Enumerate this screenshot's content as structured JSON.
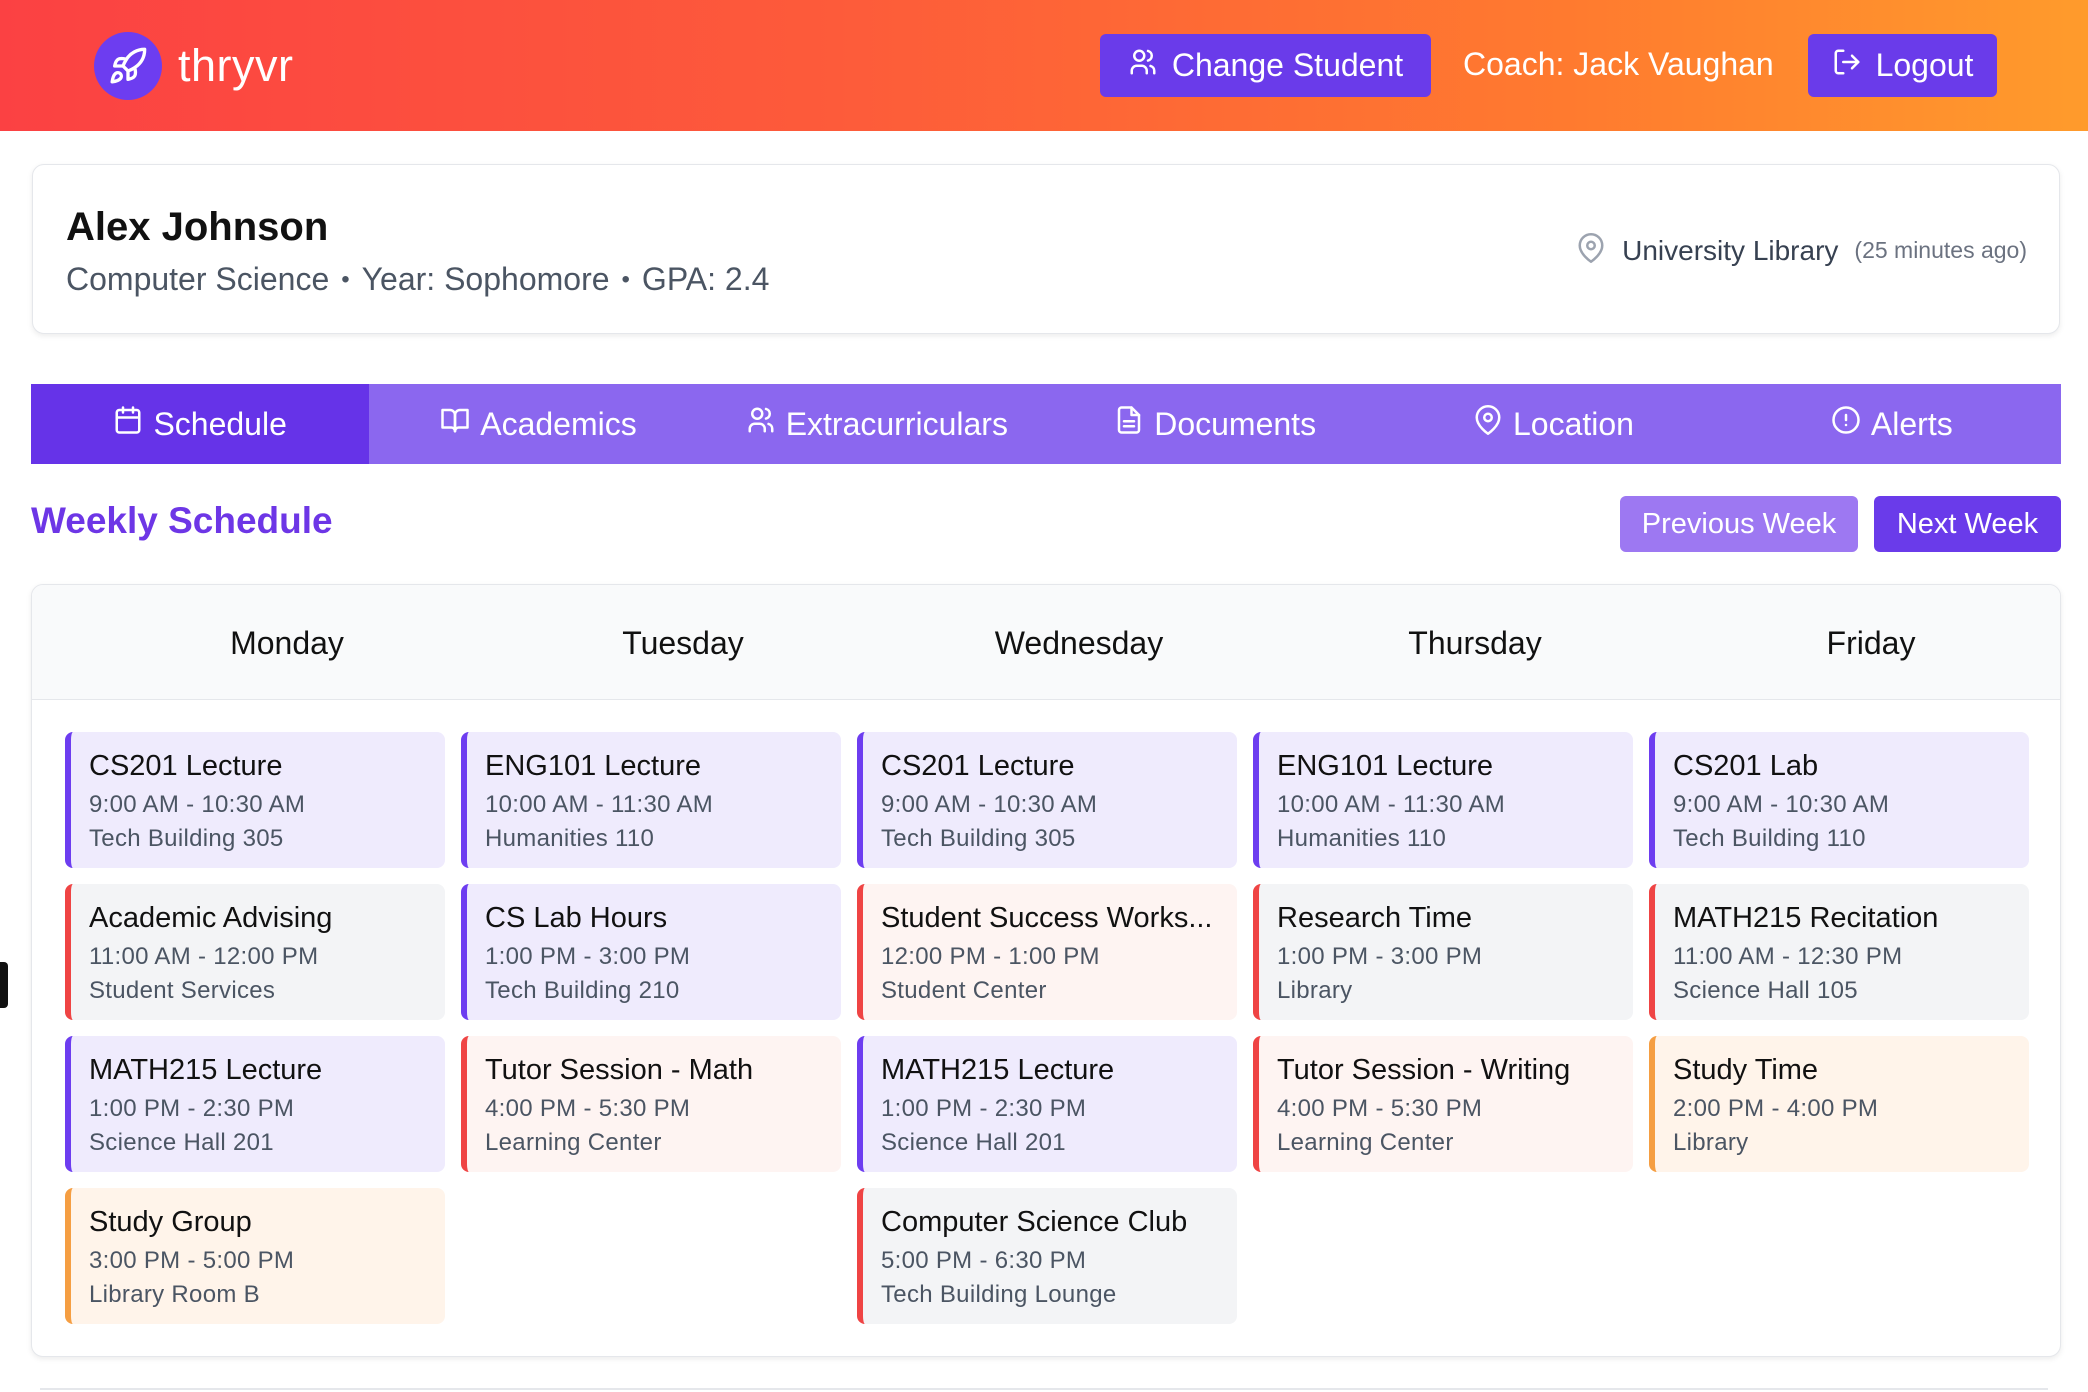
{
  "header": {
    "brand": "thryvr",
    "change_student": "Change Student",
    "coach": "Coach: Jack Vaughan",
    "logout": "Logout"
  },
  "student": {
    "name": "Alex Johnson",
    "major": "Computer Science",
    "year": "Year: Sophomore",
    "gpa": "GPA: 2.4",
    "location": "University Library",
    "location_ago": "(25 minutes ago)"
  },
  "tabs": [
    {
      "label": "Schedule",
      "icon": "calendar-icon",
      "active": true
    },
    {
      "label": "Academics",
      "icon": "book-icon"
    },
    {
      "label": "Extracurriculars",
      "icon": "users-icon"
    },
    {
      "label": "Documents",
      "icon": "document-icon"
    },
    {
      "label": "Location",
      "icon": "map-pin-icon"
    },
    {
      "label": "Alerts",
      "icon": "alert-circle-icon"
    }
  ],
  "schedule": {
    "title": "Weekly Schedule",
    "prev": "Previous Week",
    "next": "Next Week",
    "days": [
      {
        "name": "Monday",
        "events": [
          {
            "title": "CS201 Lecture",
            "time": "9:00 AM - 10:30 AM",
            "place": "Tech Building 305",
            "kind": "purple"
          },
          {
            "title": "Academic Advising",
            "time": "11:00 AM - 12:00 PM",
            "place": "Student Services",
            "kind": "red"
          },
          {
            "title": "MATH215 Lecture",
            "time": "1:00 PM - 2:30 PM",
            "place": "Science Hall 201",
            "kind": "purple"
          },
          {
            "title": "Study Group",
            "time": "3:00 PM - 5:00 PM",
            "place": "Library Room B",
            "kind": "orange"
          }
        ]
      },
      {
        "name": "Tuesday",
        "events": [
          {
            "title": "ENG101 Lecture",
            "time": "10:00 AM - 11:30 AM",
            "place": "Humanities 110",
            "kind": "purple"
          },
          {
            "title": "CS Lab Hours",
            "time": "1:00 PM - 3:00 PM",
            "place": "Tech Building 210",
            "kind": "purple"
          },
          {
            "title": "Tutor Session - Math",
            "time": "4:00 PM - 5:30 PM",
            "place": "Learning Center",
            "kind": "red-light"
          }
        ]
      },
      {
        "name": "Wednesday",
        "events": [
          {
            "title": "CS201 Lecture",
            "time": "9:00 AM - 10:30 AM",
            "place": "Tech Building 305",
            "kind": "purple"
          },
          {
            "title": "Student Success Works...",
            "time": "12:00 PM - 1:00 PM",
            "place": "Student Center",
            "kind": "red-light"
          },
          {
            "title": "MATH215 Lecture",
            "time": "1:00 PM - 2:30 PM",
            "place": "Science Hall 201",
            "kind": "purple"
          },
          {
            "title": "Computer Science Club",
            "time": "5:00 PM - 6:30 PM",
            "place": "Tech Building Lounge",
            "kind": "red"
          }
        ]
      },
      {
        "name": "Thursday",
        "events": [
          {
            "title": "ENG101 Lecture",
            "time": "10:00 AM - 11:30 AM",
            "place": "Humanities 110",
            "kind": "purple"
          },
          {
            "title": "Research Time",
            "time": "1:00 PM - 3:00 PM",
            "place": "Library",
            "kind": "red"
          },
          {
            "title": "Tutor Session - Writing",
            "time": "4:00 PM - 5:30 PM",
            "place": "Learning Center",
            "kind": "red-light"
          }
        ]
      },
      {
        "name": "Friday",
        "events": [
          {
            "title": "CS201 Lab",
            "time": "9:00 AM - 10:30 AM",
            "place": "Tech Building 110",
            "kind": "purple"
          },
          {
            "title": "MATH215 Recitation",
            "time": "11:00 AM - 12:30 PM",
            "place": "Science Hall 105",
            "kind": "red"
          },
          {
            "title": "Study Time",
            "time": "2:00 PM - 4:00 PM",
            "place": "Library",
            "kind": "orange"
          }
        ]
      }
    ]
  },
  "colors": {
    "accent": "#6a3bea",
    "tab_bar": "#8b67ef",
    "header_start": "#fb4143",
    "header_end": "#ff9b2c"
  }
}
